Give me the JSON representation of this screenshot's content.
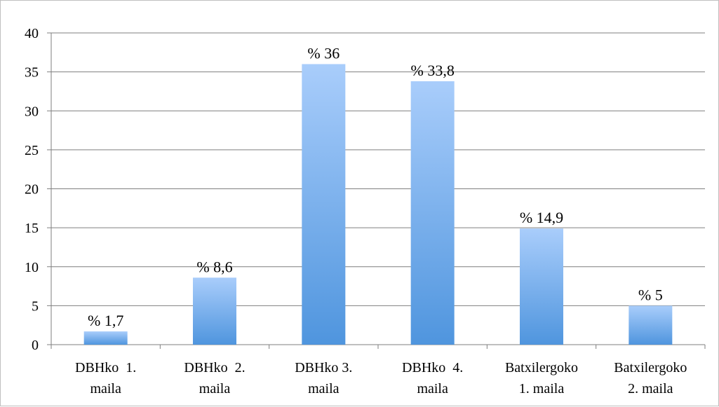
{
  "chart_data": {
    "type": "bar",
    "categories": [
      [
        "DBHko  1.",
        "maila"
      ],
      [
        "DBHko  2.",
        "maila"
      ],
      [
        "DBHko 3.",
        "maila"
      ],
      [
        "DBHko  4.",
        "maila"
      ],
      [
        "Batxilergoko",
        "1. maila"
      ],
      [
        "Batxilergoko",
        "2. maila"
      ]
    ],
    "values": [
      1.7,
      8.6,
      36,
      33.8,
      14.9,
      5
    ],
    "data_labels": [
      "% 1,7",
      "% 8,6",
      "% 36",
      "% 33,8",
      "% 14,9",
      "% 5"
    ],
    "ylim": [
      0,
      40
    ],
    "yticks": [
      0,
      5,
      10,
      15,
      20,
      25,
      30,
      35,
      40
    ],
    "grid": true,
    "legend": "none",
    "title": "",
    "xlabel": "",
    "ylabel": "",
    "colors": {
      "bar_top": "#a9cdfb",
      "bar_bottom": "#4f95de",
      "grid": "#7f7f7f",
      "axis": "#7f7f7f"
    }
  }
}
